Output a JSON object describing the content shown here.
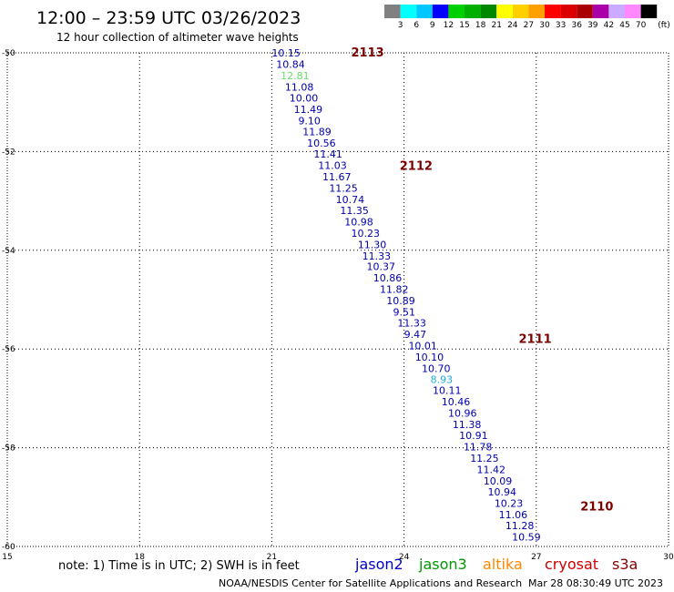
{
  "header": {
    "title": "12:00 – 23:59 UTC 03/26/2023",
    "subtitle": "12 hour collection of altimeter wave heights"
  },
  "colorbar": {
    "unit": "(ft)",
    "labels": [
      "3",
      "6",
      "9",
      "12",
      "15",
      "18",
      "21",
      "24",
      "27",
      "30",
      "33",
      "36",
      "39",
      "42",
      "45",
      "70"
    ],
    "colors": [
      "#808080",
      "#00ffff",
      "#00c8ff",
      "#0000ff",
      "#00d000",
      "#00b000",
      "#008800",
      "#ffff00",
      "#ffd000",
      "#ffa000",
      "#ff0000",
      "#dd0000",
      "#aa0000",
      "#aa00aa",
      "#ccaaff",
      "#ff88ff",
      "#000000"
    ]
  },
  "footer": {
    "note": "note: 1) Time is in UTC; 2) SWH is in feet",
    "credit": "NOAA/NESDIS Center for Satellite Applications and Research",
    "timestamp": "Mar 28 08:30:49 UTC 2023"
  },
  "satellites": [
    {
      "name": "jason2",
      "color": "#0000cc"
    },
    {
      "name": "jason3",
      "color": "#009900"
    },
    {
      "name": "altika",
      "color": "#ff8800"
    },
    {
      "name": "cryosat",
      "color": "#cc0000"
    },
    {
      "name": "s3a",
      "color": "#880000"
    }
  ],
  "chart_data": {
    "type": "scatter",
    "xlim": [
      15,
      30
    ],
    "ylim": [
      -60,
      -50
    ],
    "x_ticks": [
      "15",
      "18",
      "21",
      "24",
      "27",
      "30"
    ],
    "y_ticks": [
      "-50",
      "-52",
      "-54",
      "-56",
      "-58",
      "-60"
    ],
    "grid": true,
    "pass_labels": [
      {
        "text": "2113",
        "x": 22.8,
        "y": -50
      },
      {
        "text": "2112",
        "x": 23.9,
        "y": -52.3
      },
      {
        "text": "2111",
        "x": 26.6,
        "y": -55.8
      },
      {
        "text": "2110",
        "x": 28.0,
        "y": -59.2
      }
    ],
    "points": [
      {
        "x": 21.0,
        "y": -50.0,
        "v": "10.15",
        "c": "#0000aa"
      },
      {
        "x": 21.1,
        "y": -50.23,
        "v": "10.84",
        "c": "#0000aa"
      },
      {
        "x": 21.2,
        "y": -50.46,
        "v": "12.81",
        "c": "#66dd66"
      },
      {
        "x": 21.3,
        "y": -50.69,
        "v": "11.08",
        "c": "#0000aa"
      },
      {
        "x": 21.4,
        "y": -50.91,
        "v": "10.00",
        "c": "#0000aa"
      },
      {
        "x": 21.5,
        "y": -51.14,
        "v": "11.49",
        "c": "#0000aa"
      },
      {
        "x": 21.6,
        "y": -51.37,
        "v": "9.10",
        "c": "#0000aa"
      },
      {
        "x": 21.7,
        "y": -51.6,
        "v": "11.89",
        "c": "#0000aa"
      },
      {
        "x": 21.8,
        "y": -51.83,
        "v": "10.56",
        "c": "#0000aa"
      },
      {
        "x": 21.95,
        "y": -52.05,
        "v": "11.41",
        "c": "#0000aa"
      },
      {
        "x": 22.05,
        "y": -52.28,
        "v": "11.03",
        "c": "#0000aa"
      },
      {
        "x": 22.15,
        "y": -52.51,
        "v": "11.67",
        "c": "#0000aa"
      },
      {
        "x": 22.3,
        "y": -52.74,
        "v": "11.25",
        "c": "#0000aa"
      },
      {
        "x": 22.45,
        "y": -52.97,
        "v": "10.74",
        "c": "#0000aa"
      },
      {
        "x": 22.55,
        "y": -53.19,
        "v": "11.35",
        "c": "#0000aa"
      },
      {
        "x": 22.65,
        "y": -53.42,
        "v": "10.98",
        "c": "#0000aa"
      },
      {
        "x": 22.8,
        "y": -53.65,
        "v": "10.23",
        "c": "#0000aa"
      },
      {
        "x": 22.95,
        "y": -53.88,
        "v": "11.30",
        "c": "#0000aa"
      },
      {
        "x": 23.05,
        "y": -54.11,
        "v": "11.33",
        "c": "#0000aa"
      },
      {
        "x": 23.15,
        "y": -54.33,
        "v": "10.37",
        "c": "#0000aa"
      },
      {
        "x": 23.3,
        "y": -54.56,
        "v": "10.86",
        "c": "#0000aa"
      },
      {
        "x": 23.45,
        "y": -54.79,
        "v": "11.82",
        "c": "#0000aa"
      },
      {
        "x": 23.6,
        "y": -55.02,
        "v": "10.89",
        "c": "#0000aa"
      },
      {
        "x": 23.75,
        "y": -55.25,
        "v": "9.51",
        "c": "#0000aa"
      },
      {
        "x": 23.85,
        "y": -55.47,
        "v": "11.33",
        "c": "#0000aa"
      },
      {
        "x": 24.0,
        "y": -55.7,
        "v": "9.47",
        "c": "#0000aa"
      },
      {
        "x": 24.1,
        "y": -55.93,
        "v": "10.01",
        "c": "#0000aa"
      },
      {
        "x": 24.25,
        "y": -56.16,
        "v": "10.10",
        "c": "#0000aa"
      },
      {
        "x": 24.4,
        "y": -56.39,
        "v": "10.70",
        "c": "#0000aa"
      },
      {
        "x": 24.6,
        "y": -56.61,
        "v": "8.93",
        "c": "#22aadd"
      },
      {
        "x": 24.65,
        "y": -56.84,
        "v": "10.11",
        "c": "#0000aa"
      },
      {
        "x": 24.85,
        "y": -57.07,
        "v": "10.46",
        "c": "#0000aa"
      },
      {
        "x": 25.0,
        "y": -57.3,
        "v": "10.96",
        "c": "#0000aa"
      },
      {
        "x": 25.1,
        "y": -57.53,
        "v": "11.38",
        "c": "#0000aa"
      },
      {
        "x": 25.25,
        "y": -57.75,
        "v": "10.91",
        "c": "#0000aa"
      },
      {
        "x": 25.35,
        "y": -57.98,
        "v": "11.78",
        "c": "#0000aa"
      },
      {
        "x": 25.5,
        "y": -58.21,
        "v": "11.25",
        "c": "#0000aa"
      },
      {
        "x": 25.65,
        "y": -58.44,
        "v": "11.42",
        "c": "#0000aa"
      },
      {
        "x": 25.8,
        "y": -58.67,
        "v": "10.09",
        "c": "#0000aa"
      },
      {
        "x": 25.9,
        "y": -58.89,
        "v": "10.94",
        "c": "#0000aa"
      },
      {
        "x": 26.05,
        "y": -59.12,
        "v": "10.23",
        "c": "#0000aa"
      },
      {
        "x": 26.15,
        "y": -59.35,
        "v": "11.06",
        "c": "#0000aa"
      },
      {
        "x": 26.3,
        "y": -59.58,
        "v": "11.28",
        "c": "#0000aa"
      },
      {
        "x": 26.45,
        "y": -59.81,
        "v": "10.59",
        "c": "#0000aa"
      }
    ]
  }
}
